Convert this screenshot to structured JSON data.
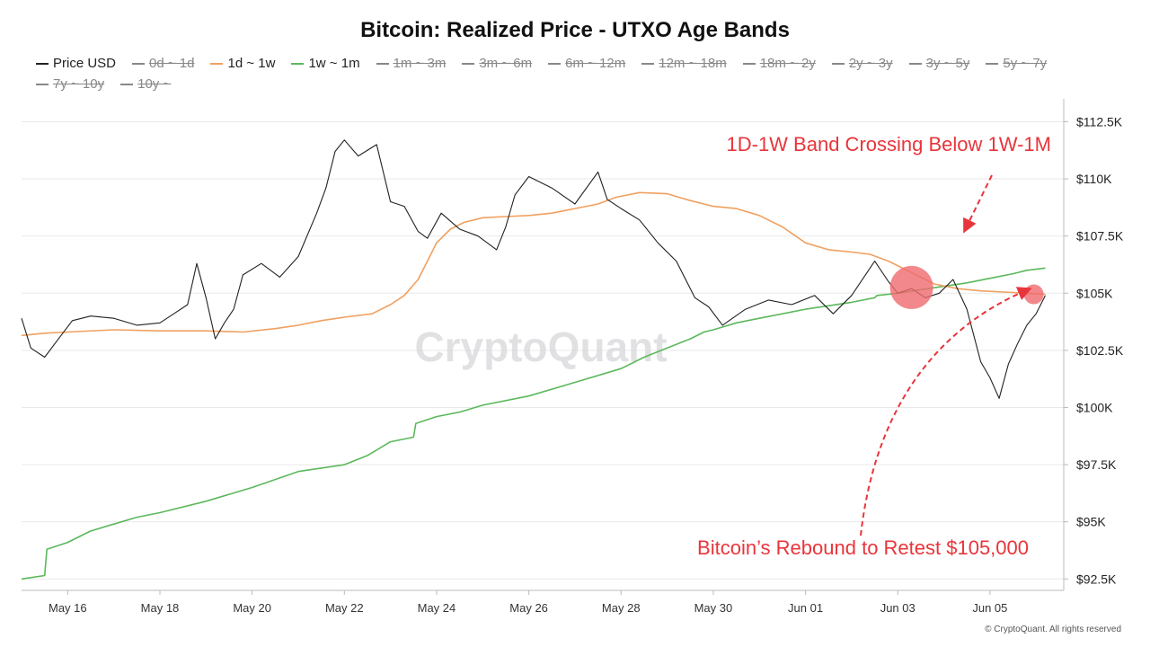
{
  "chart_data": {
    "type": "line",
    "title": "Bitcoin: Realized Price - UTXO Age Bands",
    "legend": [
      {
        "name": "Price USD",
        "color": "#222222",
        "active": true
      },
      {
        "name": "0d ~ 1d",
        "color": "#888888",
        "active": false
      },
      {
        "name": "1d ~ 1w",
        "color": "#f0a060",
        "active": true
      },
      {
        "name": "1w ~ 1m",
        "color": "#5cb85c",
        "active": true
      },
      {
        "name": "1m ~ 3m",
        "color": "#888888",
        "active": false
      },
      {
        "name": "3m ~ 6m",
        "color": "#888888",
        "active": false
      },
      {
        "name": "6m ~ 12m",
        "color": "#888888",
        "active": false
      },
      {
        "name": "12m ~ 18m",
        "color": "#888888",
        "active": false
      },
      {
        "name": "18m ~ 2y",
        "color": "#888888",
        "active": false
      },
      {
        "name": "2y ~ 3y",
        "color": "#888888",
        "active": false
      },
      {
        "name": "3y ~ 5y",
        "color": "#888888",
        "active": false
      },
      {
        "name": "5y ~ 7y",
        "color": "#888888",
        "active": false
      },
      {
        "name": "7y ~ 10y",
        "color": "#888888",
        "active": false
      },
      {
        "name": "10y ~",
        "color": "#888888",
        "active": false
      }
    ],
    "x_labels": [
      "May 16",
      "May 18",
      "May 20",
      "May 22",
      "May 24",
      "May 26",
      "May 28",
      "May 30",
      "Jun 01",
      "Jun 03",
      "Jun 05"
    ],
    "y_ticks": [
      92500,
      95000,
      97500,
      100000,
      102500,
      105000,
      107500,
      110000,
      112500
    ],
    "y_tick_labels": [
      "$92.5K",
      "$95K",
      "$97.5K",
      "$100K",
      "$102.5K",
      "$105K",
      "$107.5K",
      "$110K",
      "$112.5K"
    ],
    "ylim": [
      92000,
      113500
    ],
    "series": [
      {
        "name": "Price USD",
        "color": "#222222",
        "x": [
          15.0,
          15.2,
          15.5,
          15.8,
          16.1,
          16.5,
          17.0,
          17.5,
          18.0,
          18.3,
          18.6,
          18.8,
          19.0,
          19.2,
          19.4,
          19.6,
          19.8,
          20.2,
          20.6,
          21.0,
          21.4,
          21.6,
          21.8,
          22.0,
          22.3,
          22.7,
          23.0,
          23.3,
          23.6,
          23.8,
          24.1,
          24.5,
          24.9,
          25.3,
          25.5,
          25.7,
          26.0,
          26.5,
          27.0,
          27.5,
          27.7,
          28.0,
          28.4,
          28.8,
          29.2,
          29.6,
          29.9,
          30.2,
          30.7,
          31.2,
          31.7,
          32.2,
          32.6,
          33.0,
          33.5,
          33.8,
          34.0,
          34.3,
          34.6,
          34.9,
          35.2,
          35.5,
          35.8,
          36.0,
          36.2,
          36.4,
          36.6,
          36.8,
          37.0,
          37.2
        ],
        "y": [
          103900,
          102600,
          102200,
          103000,
          103800,
          104000,
          103900,
          103600,
          103700,
          104100,
          104500,
          106300,
          104800,
          103000,
          103700,
          104300,
          105800,
          106300,
          105700,
          106600,
          108500,
          109600,
          111200,
          111700,
          111000,
          111500,
          109000,
          108800,
          107700,
          107400,
          108500,
          107800,
          107500,
          106900,
          107900,
          109300,
          110100,
          109600,
          108900,
          110300,
          109100,
          108700,
          108200,
          107200,
          106400,
          104800,
          104400,
          103600,
          104300,
          104700,
          104500,
          104900,
          104100,
          104900,
          106400,
          105500,
          105000,
          105200,
          104800,
          105000,
          105600,
          104300,
          102000,
          101300,
          100400,
          101900,
          102800,
          103600,
          104100,
          104900
        ]
      },
      {
        "name": "1d ~ 1w",
        "color": "#f0a060",
        "x": [
          15.0,
          15.5,
          16.0,
          17.0,
          18.0,
          19.0,
          19.8,
          20.5,
          21.0,
          21.5,
          22.0,
          22.6,
          23.0,
          23.3,
          23.6,
          23.8,
          24.0,
          24.3,
          24.6,
          25.0,
          25.5,
          26.0,
          26.5,
          27.0,
          27.5,
          27.9,
          28.4,
          29.0,
          29.5,
          30.0,
          30.5,
          31.0,
          31.5,
          32.0,
          32.5,
          33.0,
          33.4,
          33.8,
          34.3,
          34.8,
          35.3,
          35.8,
          36.3,
          36.8,
          37.2
        ],
        "y": [
          103150,
          103250,
          103300,
          103400,
          103350,
          103350,
          103300,
          103450,
          103600,
          103800,
          103950,
          104100,
          104500,
          104900,
          105600,
          106400,
          107200,
          107800,
          108100,
          108300,
          108350,
          108400,
          108500,
          108700,
          108900,
          109200,
          109400,
          109350,
          109050,
          108800,
          108700,
          108400,
          107900,
          107200,
          106900,
          106800,
          106700,
          106400,
          105900,
          105400,
          105200,
          105100,
          105050,
          105000,
          104950
        ]
      },
      {
        "name": "1w ~ 1m",
        "color": "#5cb85c",
        "x": [
          15.0,
          15.5,
          15.55,
          16.0,
          16.5,
          17.0,
          17.5,
          18.0,
          19.0,
          20.0,
          21.0,
          22.0,
          22.5,
          23.0,
          23.5,
          23.55,
          24.0,
          24.5,
          25.0,
          26.0,
          27.0,
          28.0,
          28.5,
          29.0,
          29.5,
          29.8,
          30.0,
          30.5,
          31.0,
          32.0,
          33.0,
          33.5,
          33.55,
          34.0,
          35.0,
          35.5,
          36.0,
          36.5,
          36.8,
          37.2
        ],
        "y": [
          92500,
          92650,
          93800,
          94100,
          94600,
          94900,
          95200,
          95400,
          95900,
          96500,
          97200,
          97500,
          97900,
          98500,
          98700,
          99300,
          99600,
          99800,
          100100,
          100500,
          101100,
          101700,
          102200,
          102600,
          103000,
          103300,
          103400,
          103700,
          103900,
          104300,
          104600,
          104800,
          104900,
          105000,
          105300,
          105450,
          105650,
          105850,
          106000,
          106100
        ]
      }
    ],
    "annotations": [
      {
        "text": "1D-1W Band Crossing Below 1W-1M",
        "color": "#e8353b"
      },
      {
        "text": "Bitcoin’s Rebound to Retest $105,000",
        "color": "#e8353b"
      }
    ],
    "watermark": "CryptoQuant",
    "xlabel": "",
    "ylabel": ""
  },
  "footer": "© CryptoQuant. All rights reserved"
}
